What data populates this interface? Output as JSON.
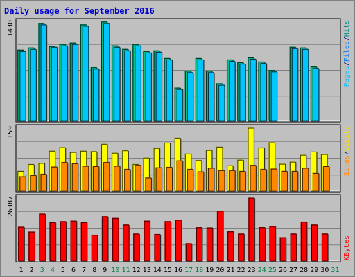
{
  "chart_data": {
    "type": "bar",
    "title": "Daily usage for September 2016",
    "categories": [
      "1",
      "2",
      "3",
      "4",
      "5",
      "6",
      "7",
      "8",
      "9",
      "10",
      "11",
      "12",
      "13",
      "14",
      "15",
      "16",
      "17",
      "18",
      "19",
      "20",
      "21",
      "22",
      "23",
      "24",
      "25",
      "26",
      "27",
      "28",
      "29",
      "30",
      "31"
    ],
    "weekend_days": [
      "3",
      "4",
      "10",
      "11",
      "17",
      "18",
      "24",
      "25",
      "31"
    ],
    "panels": [
      {
        "name": "hits-files-pages",
        "ymax_label": "1430",
        "ymax": 1430,
        "legend": [
          "Pages",
          "/",
          "Files",
          "/",
          "Hits"
        ],
        "series": [
          {
            "name": "Hits",
            "color": "#00c68c",
            "values": [
              1020,
              1050,
              1400,
              1070,
              1100,
              1120,
              1380,
              770,
              1420,
              1080,
              1030,
              1100,
              1000,
              1010,
              900,
              480,
              720,
              900,
              720,
              540,
              880,
              840,
              910,
              850,
              730,
              0,
              1060,
              1050,
              780,
              0
            ]
          },
          {
            "name": "Files",
            "color": "#00c6ff",
            "values": [
              1000,
              1030,
              1380,
              1060,
              1080,
              1100,
              1360,
              750,
              1400,
              1060,
              1010,
              1080,
              980,
              990,
              880,
              460,
              700,
              880,
              700,
              520,
              860,
              820,
              890,
              830,
              710,
              0,
              1040,
              1030,
              760,
              0
            ]
          },
          {
            "name": "Pages",
            "color": "#00808c",
            "values": [
              0,
              0,
              0,
              0,
              0,
              0,
              0,
              0,
              0,
              0,
              0,
              0,
              0,
              0,
              0,
              0,
              0,
              0,
              0,
              0,
              0,
              0,
              0,
              0,
              0,
              0,
              0,
              0,
              0,
              0
            ]
          }
        ]
      },
      {
        "name": "visits-sites",
        "ymax_label": "159",
        "ymax": 159,
        "legend": [
          "Sites",
          "/",
          "Visits"
        ],
        "series": [
          {
            "name": "Visits",
            "color": "#ffff00",
            "values": [
              50,
              67,
              70,
              100,
              109,
              97,
              100,
              99,
              117,
              95,
              101,
              67,
              83,
              107,
              120,
              132,
              93,
              77,
              102,
              110,
              64,
              78,
              157,
              108,
              121,
              68,
              73,
              90,
              98,
              92
            ]
          },
          {
            "name": "Sites",
            "color": "#ff8800",
            "values": [
              37,
              40,
              43,
              61,
              72,
              69,
              63,
              62,
              72,
              63,
              55,
              65,
              34,
              59,
              60,
              76,
              55,
              49,
              58,
              52,
              52,
              50,
              65,
              55,
              56,
              50,
              50,
              58,
              45,
              62
            ]
          }
        ]
      },
      {
        "name": "kbytes",
        "ymax_label": "26387",
        "ymax": 26387,
        "legend": [
          "KBytes"
        ],
        "series": [
          {
            "name": "KBytes",
            "color": "#ff0000",
            "values": [
              14100,
              12100,
              19500,
              16000,
              16400,
              16600,
              16000,
              10800,
              18400,
              17700,
              15000,
              11300,
              16600,
              11100,
              16400,
              17000,
              7300,
              13900,
              13800,
              20700,
              12200,
              11300,
              26000,
              13900,
              14400,
              9800,
              11300,
              16200,
              15000,
              11300
            ]
          }
        ]
      }
    ]
  }
}
